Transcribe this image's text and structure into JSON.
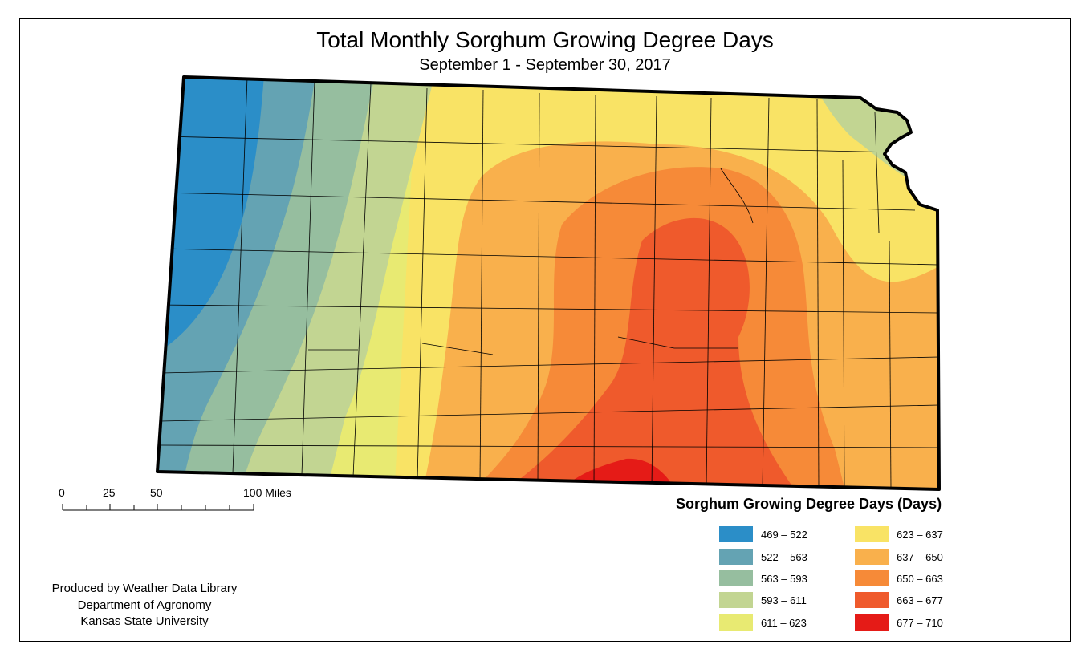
{
  "title": "Total Monthly Sorghum Growing Degree Days",
  "subtitle": "September 1 - September 30, 2017",
  "scale_bar": {
    "labels": [
      "0",
      "25",
      "50",
      "100 Miles"
    ]
  },
  "legend": {
    "title": "Sorghum Growing Degree Days (Days)",
    "items": [
      {
        "label": "469 – 522",
        "color": "#2b8ec8"
      },
      {
        "label": "522 – 563",
        "color": "#64a3b3"
      },
      {
        "label": "563 – 593",
        "color": "#96be9f"
      },
      {
        "label": "593 – 611",
        "color": "#c2d592"
      },
      {
        "label": "611 – 623",
        "color": "#e8ea72"
      },
      {
        "label": "623 – 637",
        "color": "#f9e365"
      },
      {
        "label": "637 – 650",
        "color": "#f9b04c"
      },
      {
        "label": "650 – 663",
        "color": "#f68a38"
      },
      {
        "label": "663 – 677",
        "color": "#ef5a2c"
      },
      {
        "label": "677 – 710",
        "color": "#e51b17"
      }
    ]
  },
  "credits": [
    "Produced by Weather Data Library",
    "Department of Agronomy",
    "Kansas State University"
  ]
}
